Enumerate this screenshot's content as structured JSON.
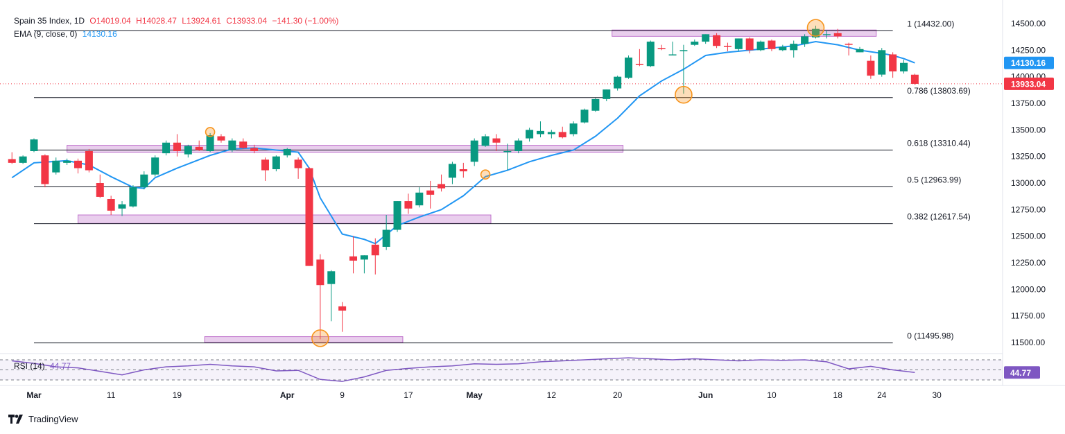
{
  "header": {
    "symbol": "Spain 35 Index, 1D",
    "open": "O14019.04",
    "high": "H14028.47",
    "low": "L13924.61",
    "close": "C13933.04",
    "change": "−141.30 (−1.00%)"
  },
  "ema_legend": {
    "label": "EMA (9, close, 0)",
    "value": "14130.16"
  },
  "rsi_legend": {
    "label": "RSI (14)",
    "value": "44.77"
  },
  "branding": {
    "logo_text": "TradingView"
  },
  "colors": {
    "up": "#089981",
    "down": "#f23645",
    "ema": "#2196f3",
    "rsi": "#7e57c2",
    "zone": "#ce93d8",
    "marker": "#f7931a"
  },
  "chart_data": {
    "type": "candlestick",
    "ylim": [
      11420,
      14560
    ],
    "y_ticks": [
      11500,
      11750,
      12000,
      12250,
      12500,
      12750,
      13000,
      13250,
      13500,
      13750,
      14000,
      14250,
      14500
    ],
    "x_labels": [
      "Mar",
      "11",
      "19",
      "Apr",
      "9",
      "17",
      "May",
      "12",
      "20",
      "Jun",
      "10",
      "18",
      "24",
      "30"
    ],
    "x_label_bars": [
      0,
      7,
      13,
      23,
      28,
      34,
      40,
      47,
      53,
      61,
      67,
      73,
      77,
      82
    ],
    "fib_levels": [
      {
        "label": "1 (14432.00)",
        "value": 14432.0
      },
      {
        "label": "0.786 (13803.69)",
        "value": 13803.69
      },
      {
        "label": "0.618 (13310.44)",
        "value": 13310.44
      },
      {
        "label": "0.5 (12963.99)",
        "value": 12963.99
      },
      {
        "label": "0.382 (12617.54)",
        "value": 12617.54
      },
      {
        "label": "0 (11495.98)",
        "value": 11495.98
      }
    ],
    "zones": [
      {
        "from": 52.5,
        "to": 76.5,
        "low": 14380,
        "high": 14440
      },
      {
        "from": 3,
        "to": 53.5,
        "low": 13290,
        "high": 13355
      },
      {
        "from": 4,
        "to": 41.5,
        "low": 12620,
        "high": 12700
      },
      {
        "from": 15.5,
        "to": 33.5,
        "low": 11500,
        "high": 11555
      }
    ],
    "price_labels": [
      {
        "text": "14130.16",
        "value": 14130.16,
        "color": "#2196f3"
      },
      {
        "text": "13933.04",
        "value": 13933.04,
        "color": "#f23645"
      }
    ],
    "last_close": 13933.04,
    "candles": [
      [
        -2,
        13225,
        13290,
        13180,
        13190
      ],
      [
        -1,
        13190,
        13260,
        13180,
        13250
      ],
      [
        0,
        13300,
        13420,
        13290,
        13410
      ],
      [
        1,
        13260,
        13270,
        12960,
        12990
      ],
      [
        2,
        13100,
        13240,
        13080,
        13210
      ],
      [
        3,
        13190,
        13230,
        13170,
        13210
      ],
      [
        4,
        13210,
        13230,
        13090,
        13140
      ],
      [
        5,
        13300,
        13320,
        13100,
        13120
      ],
      [
        6,
        13000,
        13080,
        12860,
        12870
      ],
      [
        7,
        12850,
        12880,
        12700,
        12740
      ],
      [
        8,
        12760,
        12830,
        12690,
        12800
      ],
      [
        9,
        12780,
        12980,
        12770,
        12960
      ],
      [
        10,
        12960,
        13110,
        12940,
        13080
      ],
      [
        11,
        13080,
        13260,
        13060,
        13240
      ],
      [
        12,
        13280,
        13400,
        13260,
        13380
      ],
      [
        13,
        13380,
        13460,
        13250,
        13300
      ],
      [
        14,
        13270,
        13360,
        13240,
        13350
      ],
      [
        15,
        13340,
        13400,
        13300,
        13310
      ],
      [
        16,
        13300,
        13470,
        13290,
        13450
      ],
      [
        17,
        13440,
        13460,
        13380,
        13400
      ],
      [
        18,
        13310,
        13420,
        13290,
        13400
      ],
      [
        19,
        13390,
        13420,
        13320,
        13330
      ],
      [
        20,
        13330,
        13360,
        13280,
        13300
      ],
      [
        21,
        13220,
        13240,
        13020,
        13120
      ],
      [
        22,
        13130,
        13260,
        13110,
        13250
      ],
      [
        23,
        13260,
        13330,
        13240,
        13320
      ],
      [
        24,
        13220,
        13240,
        13040,
        13140
      ],
      [
        25,
        13140,
        13150,
        12220,
        12220
      ],
      [
        26,
        12280,
        12330,
        11530,
        12040
      ],
      [
        27,
        12050,
        12180,
        11700,
        12170
      ],
      [
        28,
        11840,
        11880,
        11600,
        11800
      ],
      [
        29,
        12310,
        12500,
        12150,
        12270
      ],
      [
        30,
        12280,
        12320,
        12150,
        12320
      ],
      [
        31,
        12420,
        12480,
        12140,
        12320
      ],
      [
        32,
        12400,
        12700,
        12370,
        12560
      ],
      [
        33,
        12560,
        12830,
        12540,
        12830
      ],
      [
        34,
        12830,
        12900,
        12710,
        12760
      ],
      [
        35,
        12790,
        12960,
        12770,
        12910
      ],
      [
        36,
        12930,
        13020,
        12760,
        12890
      ],
      [
        37,
        12990,
        13080,
        12920,
        12950
      ],
      [
        38,
        13050,
        13200,
        12990,
        13180
      ],
      [
        39,
        13130,
        13190,
        13050,
        13110
      ],
      [
        40,
        13200,
        13420,
        13160,
        13400
      ],
      [
        41,
        13350,
        13460,
        13340,
        13440
      ],
      [
        42,
        13420,
        13460,
        13300,
        13380
      ],
      [
        43,
        13300,
        13370,
        13120,
        13300
      ],
      [
        44,
        13300,
        13420,
        13280,
        13400
      ],
      [
        45,
        13420,
        13520,
        13390,
        13500
      ],
      [
        46,
        13460,
        13580,
        13430,
        13490
      ],
      [
        47,
        13460,
        13500,
        13420,
        13480
      ],
      [
        48,
        13480,
        13530,
        13420,
        13430
      ],
      [
        49,
        13460,
        13580,
        13440,
        13560
      ],
      [
        50,
        13570,
        13700,
        13560,
        13690
      ],
      [
        51,
        13680,
        13800,
        13670,
        13790
      ],
      [
        52,
        13790,
        13880,
        13770,
        13880
      ],
      [
        53,
        13890,
        14010,
        13870,
        14000
      ],
      [
        54,
        13990,
        14200,
        13980,
        14180
      ],
      [
        55,
        14120,
        14260,
        14100,
        14110
      ],
      [
        56,
        14100,
        14340,
        14090,
        14330
      ],
      [
        57,
        14270,
        14300,
        14250,
        14260
      ],
      [
        58,
        14210,
        14330,
        14200,
        14210
      ],
      [
        59,
        14240,
        14300,
        13840,
        14250
      ],
      [
        60,
        14300,
        14350,
        14290,
        14330
      ],
      [
        61,
        14330,
        14400,
        14310,
        14400
      ],
      [
        62,
        14390,
        14410,
        14270,
        14290
      ],
      [
        63,
        14290,
        14320,
        14240,
        14280
      ],
      [
        64,
        14260,
        14360,
        14240,
        14360
      ],
      [
        65,
        14360,
        14370,
        14220,
        14250
      ],
      [
        66,
        14250,
        14340,
        14240,
        14330
      ],
      [
        67,
        14340,
        14350,
        14240,
        14260
      ],
      [
        68,
        14250,
        14300,
        14240,
        14280
      ],
      [
        69,
        14250,
        14340,
        14180,
        14310
      ],
      [
        70,
        14310,
        14400,
        14280,
        14380
      ],
      [
        71,
        14370,
        14480,
        14360,
        14450
      ],
      [
        72,
        14400,
        14440,
        14360,
        14400
      ],
      [
        73,
        14410,
        14450,
        14360,
        14380
      ],
      [
        74,
        14310,
        14320,
        14200,
        14300
      ],
      [
        75,
        14230,
        14280,
        14230,
        14260
      ],
      [
        76,
        14150,
        14200,
        13980,
        14010
      ],
      [
        77,
        14020,
        14270,
        14000,
        14250
      ],
      [
        78,
        14210,
        14230,
        13990,
        14050
      ],
      [
        79,
        14050,
        14160,
        14030,
        14130
      ],
      [
        80,
        14019.04,
        14028.47,
        13924.61,
        13933.04
      ]
    ],
    "ema": [
      [
        -2,
        13050
      ],
      [
        0,
        13190
      ],
      [
        3,
        13210
      ],
      [
        5,
        13170
      ],
      [
        7,
        13060
      ],
      [
        9,
        12960
      ],
      [
        10,
        12950
      ],
      [
        11,
        13050
      ],
      [
        13,
        13140
      ],
      [
        14,
        13180
      ],
      [
        16,
        13260
      ],
      [
        18,
        13320
      ],
      [
        20,
        13330
      ],
      [
        22,
        13310
      ],
      [
        24,
        13290
      ],
      [
        25,
        13140
      ],
      [
        26,
        12860
      ],
      [
        28,
        12520
      ],
      [
        30,
        12470
      ],
      [
        31,
        12430
      ],
      [
        33,
        12600
      ],
      [
        35,
        12680
      ],
      [
        37,
        12750
      ],
      [
        39,
        12880
      ],
      [
        41,
        13060
      ],
      [
        43,
        13120
      ],
      [
        45,
        13200
      ],
      [
        47,
        13260
      ],
      [
        49,
        13310
      ],
      [
        51,
        13440
      ],
      [
        53,
        13610
      ],
      [
        55,
        13820
      ],
      [
        57,
        13960
      ],
      [
        59,
        14070
      ],
      [
        61,
        14200
      ],
      [
        63,
        14230
      ],
      [
        65,
        14250
      ],
      [
        67,
        14270
      ],
      [
        69,
        14290
      ],
      [
        71,
        14330
      ],
      [
        73,
        14300
      ],
      [
        75,
        14250
      ],
      [
        77,
        14220
      ],
      [
        78,
        14200
      ],
      [
        79,
        14170
      ],
      [
        80,
        14130.16
      ]
    ],
    "rsi": [
      [
        -2,
        68
      ],
      [
        0,
        63
      ],
      [
        2,
        56
      ],
      [
        4,
        54
      ],
      [
        6,
        47
      ],
      [
        8,
        40
      ],
      [
        10,
        50
      ],
      [
        12,
        56
      ],
      [
        14,
        58
      ],
      [
        16,
        61
      ],
      [
        18,
        58
      ],
      [
        20,
        56
      ],
      [
        22,
        48
      ],
      [
        24,
        49
      ],
      [
        26,
        31
      ],
      [
        28,
        27
      ],
      [
        30,
        36
      ],
      [
        32,
        49
      ],
      [
        34,
        53
      ],
      [
        36,
        56
      ],
      [
        38,
        58
      ],
      [
        40,
        62
      ],
      [
        42,
        61
      ],
      [
        44,
        62
      ],
      [
        46,
        66
      ],
      [
        48,
        68
      ],
      [
        50,
        70
      ],
      [
        52,
        72
      ],
      [
        54,
        74
      ],
      [
        56,
        72
      ],
      [
        58,
        70
      ],
      [
        60,
        72
      ],
      [
        62,
        70
      ],
      [
        64,
        68
      ],
      [
        66,
        70
      ],
      [
        68,
        69
      ],
      [
        70,
        70
      ],
      [
        72,
        66
      ],
      [
        74,
        52
      ],
      [
        76,
        57
      ],
      [
        78,
        50
      ],
      [
        80,
        44.77
      ]
    ],
    "rsi_levels": [
      30,
      50,
      70
    ],
    "rsi_value": 44.77,
    "markers": [
      {
        "bar": 26,
        "value": 11540,
        "size": "large"
      },
      {
        "bar": 16,
        "value": 13480,
        "size": "small"
      },
      {
        "bar": 41,
        "value": 13080,
        "size": "small"
      },
      {
        "bar": 59,
        "value": 13830,
        "size": "large"
      },
      {
        "bar": 71,
        "value": 14460,
        "size": "large"
      }
    ]
  }
}
